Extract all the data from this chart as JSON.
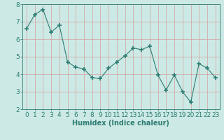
{
  "x": [
    0,
    1,
    2,
    3,
    4,
    5,
    6,
    7,
    8,
    9,
    10,
    11,
    12,
    13,
    14,
    15,
    16,
    17,
    18,
    19,
    20,
    21,
    22,
    23
  ],
  "y": [
    6.6,
    7.4,
    7.7,
    6.4,
    6.8,
    4.7,
    4.4,
    4.3,
    3.8,
    3.75,
    4.35,
    4.7,
    5.05,
    5.5,
    5.4,
    5.6,
    3.95,
    3.1,
    3.95,
    3.0,
    2.4,
    4.6,
    4.35,
    3.8
  ],
  "line_color": "#2e7d72",
  "marker": "+",
  "marker_size": 4,
  "bg_color": "#cce9e5",
  "grid_color": "#b0ceca",
  "xlabel": "Humidex (Indice chaleur)",
  "xlim": [
    -0.5,
    23.5
  ],
  "ylim": [
    2,
    8
  ],
  "yticks": [
    2,
    3,
    4,
    5,
    6,
    7,
    8
  ],
  "xticks": [
    0,
    1,
    2,
    3,
    4,
    5,
    6,
    7,
    8,
    9,
    10,
    11,
    12,
    13,
    14,
    15,
    16,
    17,
    18,
    19,
    20,
    21,
    22,
    23
  ],
  "tick_color": "#2e7d72",
  "label_color": "#2e7d72",
  "font_size": 6.5
}
